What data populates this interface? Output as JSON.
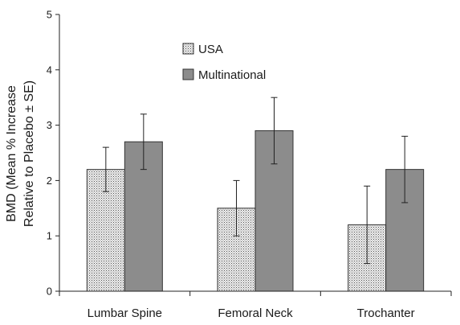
{
  "chart_data": {
    "type": "bar",
    "title": "",
    "xlabel": "",
    "ylabel_lines": [
      "BMD (Mean % Increase",
      "Relative to Placebo ± SE)"
    ],
    "categories": [
      "Lumbar Spine",
      "Femoral Neck",
      "Trochanter"
    ],
    "ylim": [
      0,
      5
    ],
    "yticks": [
      "0",
      "1",
      "2",
      "3",
      "4",
      "5"
    ],
    "grid": false,
    "legend_position": "top-center",
    "series": [
      {
        "name": "USA",
        "values": [
          2.2,
          1.5,
          1.2
        ],
        "error_low": [
          1.8,
          1.0,
          0.5
        ],
        "error_high": [
          2.6,
          2.0,
          1.9
        ],
        "fill": "dotted",
        "color": "#cfcfcf"
      },
      {
        "name": "Multinational",
        "values": [
          2.7,
          2.9,
          2.2
        ],
        "error_low": [
          2.2,
          2.3,
          1.6
        ],
        "error_high": [
          3.2,
          3.5,
          2.8
        ],
        "fill": "solid",
        "color": "#8c8c8c"
      }
    ]
  }
}
